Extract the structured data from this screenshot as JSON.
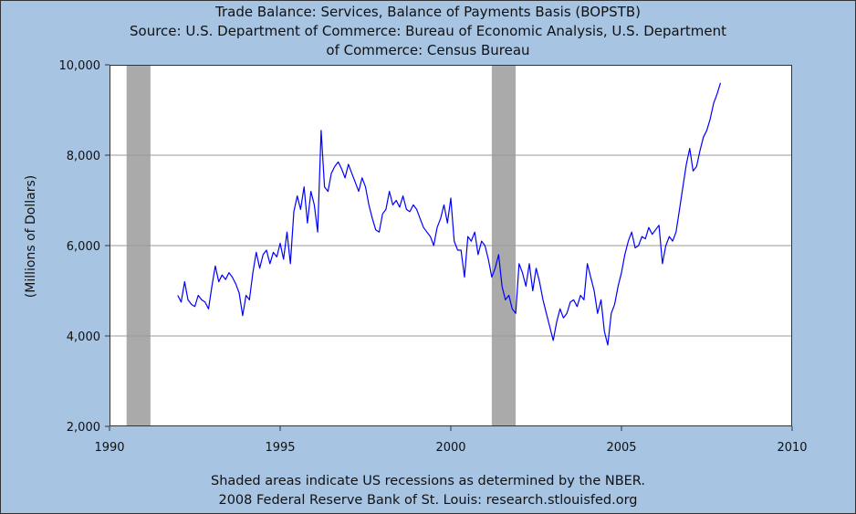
{
  "title_lines": [
    "Trade Balance: Services, Balance of Payments Basis (BOPSTB)",
    "Source: U.S. Department of Commerce: Bureau of Economic Analysis, U.S. Department",
    "of Commerce: Census Bureau"
  ],
  "footer_lines": [
    "Shaded areas indicate US recessions as determined by the NBER.",
    "2008 Federal Reserve Bank of St. Louis: research.stlouisfed.org"
  ],
  "chart_data": {
    "type": "line",
    "title": "Trade Balance: Services, Balance of Payments Basis (BOPSTB)",
    "ylabel": "(Millions of Dollars)",
    "xlabel": "",
    "xlim": [
      1990,
      2010
    ],
    "ylim": [
      2000,
      10000
    ],
    "x_ticks": [
      1990,
      1995,
      2000,
      2005,
      2010
    ],
    "x_tick_labels": [
      "1990",
      "1995",
      "2000",
      "2005",
      "2010"
    ],
    "y_ticks": [
      2000,
      4000,
      6000,
      8000,
      10000
    ],
    "y_tick_labels": [
      "2,000",
      "4,000",
      "6,000",
      "8,000",
      "10,000"
    ],
    "grid": true,
    "line_color": "#0000ff",
    "recession_color": "#aaaaaa",
    "recessions": [
      [
        1990.5,
        1991.2
      ],
      [
        2001.2,
        2001.9
      ]
    ],
    "series": [
      {
        "x": [
          1992.0,
          1992.1,
          1992.2,
          1992.3,
          1992.4,
          1992.5,
          1992.6,
          1992.7,
          1992.8,
          1992.9,
          1993.0,
          1993.1,
          1993.2,
          1993.3,
          1993.4,
          1993.5,
          1993.6,
          1993.7,
          1993.8,
          1993.9,
          1994.0,
          1994.1,
          1994.2,
          1994.3,
          1994.4,
          1994.5,
          1994.6,
          1994.7,
          1994.8,
          1994.9,
          1995.0,
          1995.1,
          1995.2,
          1995.3,
          1995.4,
          1995.5,
          1995.6,
          1995.7,
          1995.8,
          1995.9,
          1996.0,
          1996.1,
          1996.2,
          1996.3,
          1996.4,
          1996.5,
          1996.6,
          1996.7,
          1996.8,
          1996.9,
          1997.0,
          1997.1,
          1997.2,
          1997.3,
          1997.4,
          1997.5,
          1997.6,
          1997.7,
          1997.8,
          1997.9,
          1998.0,
          1998.1,
          1998.2,
          1998.3,
          1998.4,
          1998.5,
          1998.6,
          1998.7,
          1998.8,
          1998.9,
          1999.0,
          1999.1,
          1999.2,
          1999.3,
          1999.4,
          1999.5,
          1999.6,
          1999.7,
          1999.8,
          1999.9,
          2000.0,
          2000.1,
          2000.2,
          2000.3,
          2000.4,
          2000.5,
          2000.6,
          2000.7,
          2000.8,
          2000.9,
          2001.0,
          2001.1,
          2001.2,
          2001.3,
          2001.4,
          2001.5,
          2001.6,
          2001.7,
          2001.8,
          2001.9,
          2002.0,
          2002.1,
          2002.2,
          2002.3,
          2002.4,
          2002.5,
          2002.6,
          2002.7,
          2002.8,
          2002.9,
          2003.0,
          2003.1,
          2003.2,
          2003.3,
          2003.4,
          2003.5,
          2003.6,
          2003.7,
          2003.8,
          2003.9,
          2004.0,
          2004.1,
          2004.2,
          2004.3,
          2004.4,
          2004.5,
          2004.6,
          2004.7,
          2004.8,
          2004.9,
          2005.0,
          2005.1,
          2005.2,
          2005.3,
          2005.4,
          2005.5,
          2005.6,
          2005.7,
          2005.8,
          2005.9,
          2006.0,
          2006.1,
          2006.2,
          2006.3,
          2006.4,
          2006.5,
          2006.6,
          2006.7,
          2006.8,
          2006.9,
          2007.0,
          2007.1,
          2007.2,
          2007.3,
          2007.4,
          2007.5,
          2007.6,
          2007.7,
          2007.8,
          2007.9
        ],
        "y": [
          4900,
          4750,
          5200,
          4800,
          4700,
          4650,
          4900,
          4800,
          4750,
          4600,
          5100,
          5550,
          5200,
          5350,
          5250,
          5400,
          5300,
          5150,
          4950,
          4450,
          4900,
          4800,
          5400,
          5850,
          5500,
          5800,
          5900,
          5600,
          5850,
          5750,
          6050,
          5700,
          6300,
          5600,
          6750,
          7100,
          6800,
          7300,
          6500,
          7200,
          6900,
          6300,
          8550,
          7300,
          7200,
          7600,
          7750,
          7850,
          7700,
          7500,
          7800,
          7600,
          7400,
          7200,
          7500,
          7300,
          6900,
          6600,
          6350,
          6300,
          6700,
          6800,
          7200,
          6900,
          7000,
          6850,
          7100,
          6800,
          6750,
          6900,
          6800,
          6600,
          6400,
          6300,
          6200,
          6000,
          6400,
          6600,
          6900,
          6500,
          7050,
          6100,
          5900,
          5900,
          5300,
          6200,
          6100,
          6300,
          5800,
          6100,
          6000,
          5700,
          5300,
          5500,
          5800,
          5100,
          4800,
          4900,
          4600,
          4500,
          5600,
          5400,
          5100,
          5600,
          5000,
          5500,
          5200,
          4800,
          4500,
          4200,
          3900,
          4300,
          4600,
          4400,
          4500,
          4750,
          4800,
          4650,
          4900,
          4800,
          5600,
          5300,
          5000,
          4500,
          4800,
          4100,
          3800,
          4500,
          4700,
          5100,
          5400,
          5800,
          6100,
          6300,
          5950,
          6000,
          6200,
          6150,
          6400,
          6250,
          6350,
          6450,
          5600,
          6000,
          6200,
          6100,
          6300,
          6800,
          7300,
          7800,
          8150,
          7650,
          7750,
          8100,
          8400,
          8550,
          8800,
          9150,
          9350,
          9600
        ]
      }
    ]
  }
}
